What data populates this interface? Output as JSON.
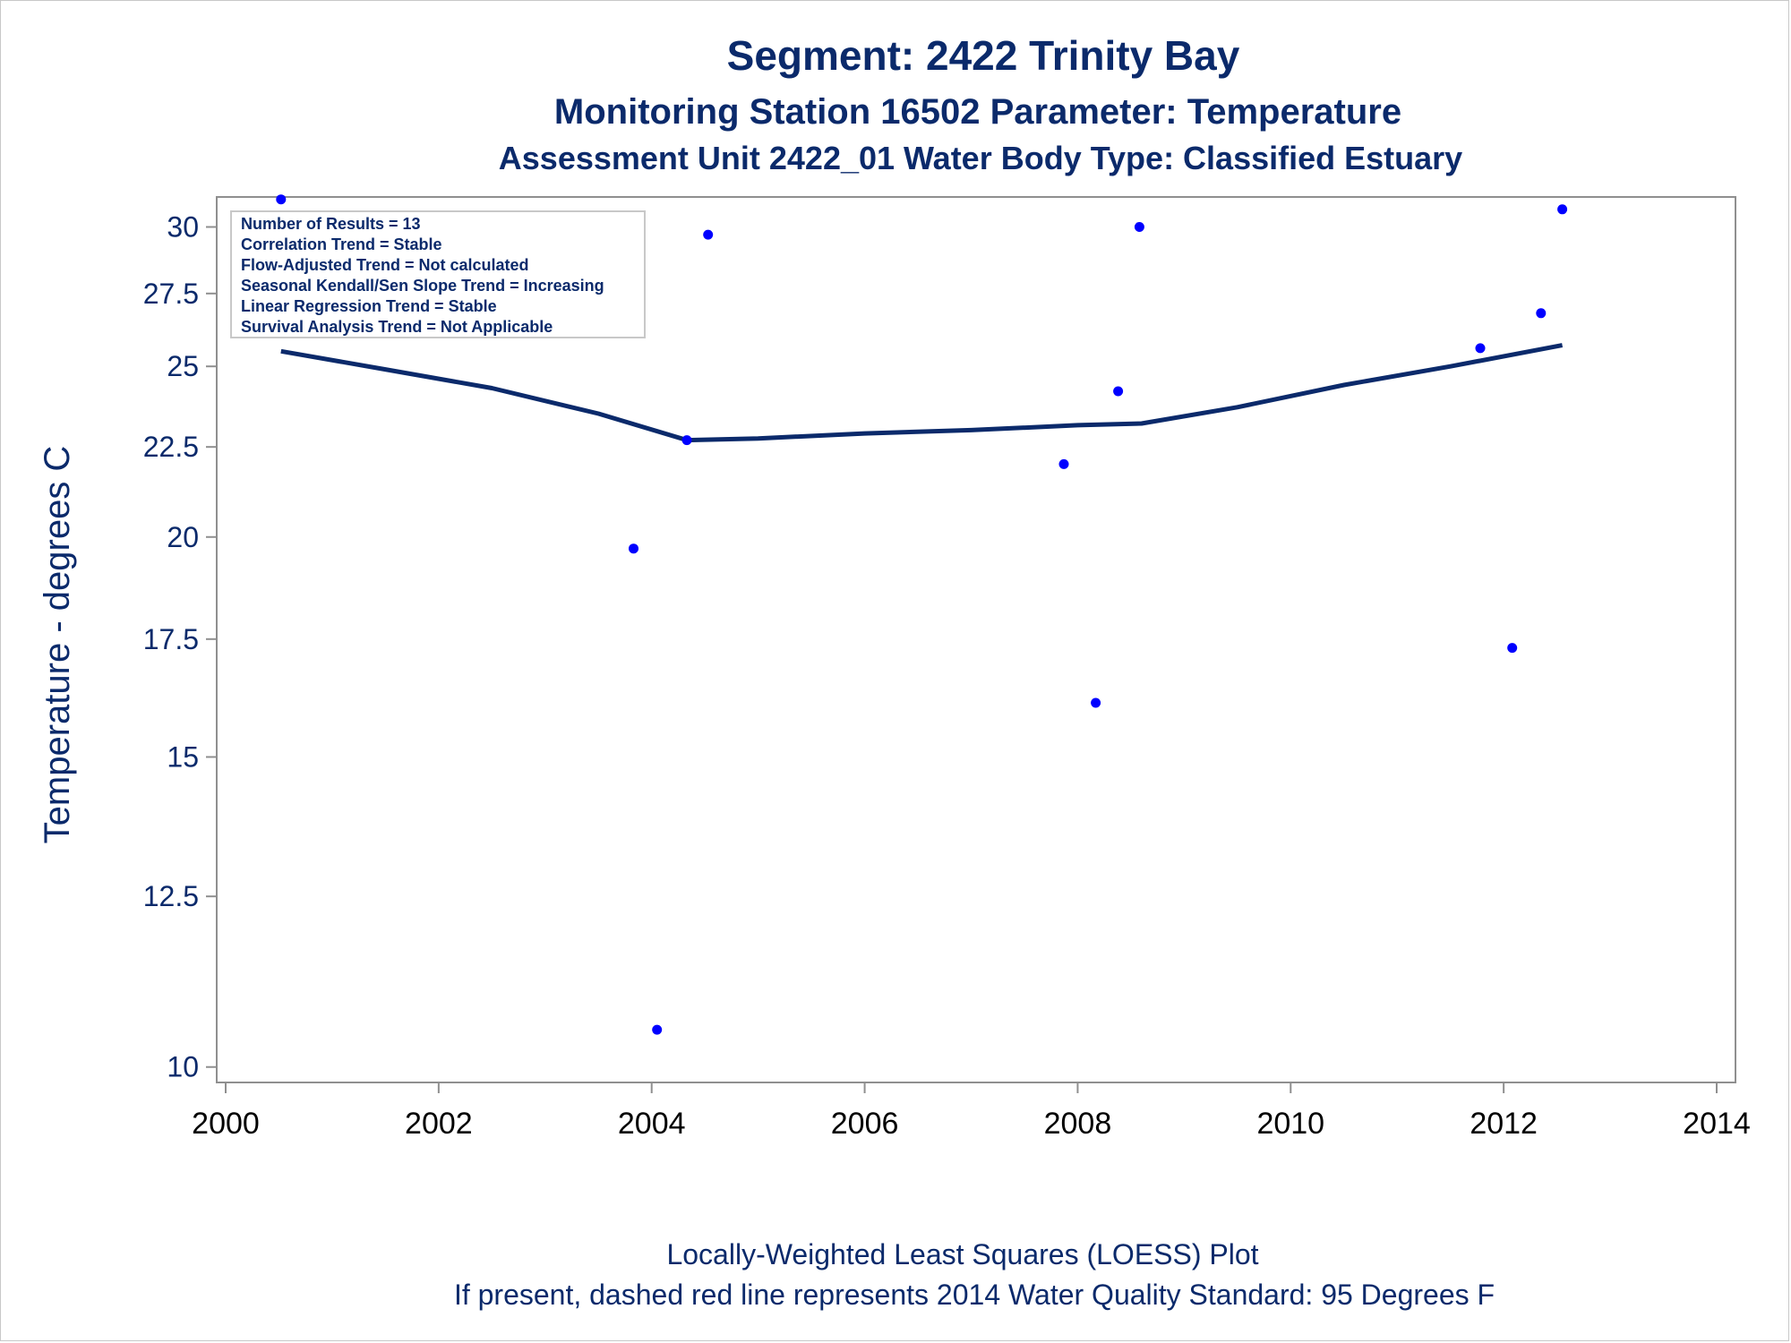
{
  "chart_data": {
    "type": "scatter",
    "title": "Segment: 2422  Trinity Bay",
    "subtitle": "Monitoring Station 16502 Parameter: Temperature",
    "subtitle2": "Assessment Unit 2422_01   Water Body Type: Classified Estuary",
    "xlabel": "",
    "ylabel": "Temperature - degrees C",
    "footnote1": "Locally-Weighted Least Squares (LOESS) Plot",
    "footnote2": "If present, dashed red line represents 2014 Water Quality Standard: 95   Degrees F",
    "y_scale": "log",
    "xlim": [
      2000,
      2014
    ],
    "ylim": [
      9.8,
      31.2
    ],
    "x_ticks": [
      "2000",
      "2002",
      "2004",
      "2006",
      "2008",
      "2010",
      "2012",
      "2014"
    ],
    "y_ticks": [
      "10",
      "12.5",
      "15",
      "17.5",
      "20",
      "22.5",
      "25",
      "27.5",
      "30"
    ],
    "grid": false,
    "stats_box": {
      "position": "top-left",
      "lines": [
        "Number of Results = 13",
        "Correlation Trend = Stable",
        "Flow-Adjusted Trend = Not calculated",
        "Seasonal Kendall/Sen Slope Trend = Increasing",
        "Linear Regression Trend = Stable",
        "Survival Analysis Trend = Not Applicable"
      ]
    },
    "series": [
      {
        "kind": "points",
        "color": "#0000ff",
        "points": [
          {
            "x": 2000.52,
            "y": 31.1
          },
          {
            "x": 2003.83,
            "y": 19.7
          },
          {
            "x": 2004.05,
            "y": 10.5
          },
          {
            "x": 2004.33,
            "y": 22.7
          },
          {
            "x": 2004.53,
            "y": 29.7
          },
          {
            "x": 2007.87,
            "y": 22.0
          },
          {
            "x": 2008.17,
            "y": 16.1
          },
          {
            "x": 2008.38,
            "y": 24.2
          },
          {
            "x": 2008.58,
            "y": 30.0
          },
          {
            "x": 2011.78,
            "y": 25.6
          },
          {
            "x": 2012.08,
            "y": 17.3
          },
          {
            "x": 2012.35,
            "y": 26.8
          },
          {
            "x": 2012.55,
            "y": 30.7
          }
        ]
      },
      {
        "kind": "loess",
        "color": "#0b2a6b",
        "points": [
          {
            "x": 2000.52,
            "y": 25.5
          },
          {
            "x": 2001.5,
            "y": 24.9
          },
          {
            "x": 2002.5,
            "y": 24.3
          },
          {
            "x": 2003.5,
            "y": 23.5
          },
          {
            "x": 2004.33,
            "y": 22.7
          },
          {
            "x": 2005.0,
            "y": 22.75
          },
          {
            "x": 2006.0,
            "y": 22.9
          },
          {
            "x": 2007.0,
            "y": 23.0
          },
          {
            "x": 2008.0,
            "y": 23.15
          },
          {
            "x": 2008.6,
            "y": 23.2
          },
          {
            "x": 2009.5,
            "y": 23.7
          },
          {
            "x": 2010.5,
            "y": 24.4
          },
          {
            "x": 2011.5,
            "y": 25.0
          },
          {
            "x": 2012.55,
            "y": 25.7
          }
        ]
      }
    ]
  }
}
